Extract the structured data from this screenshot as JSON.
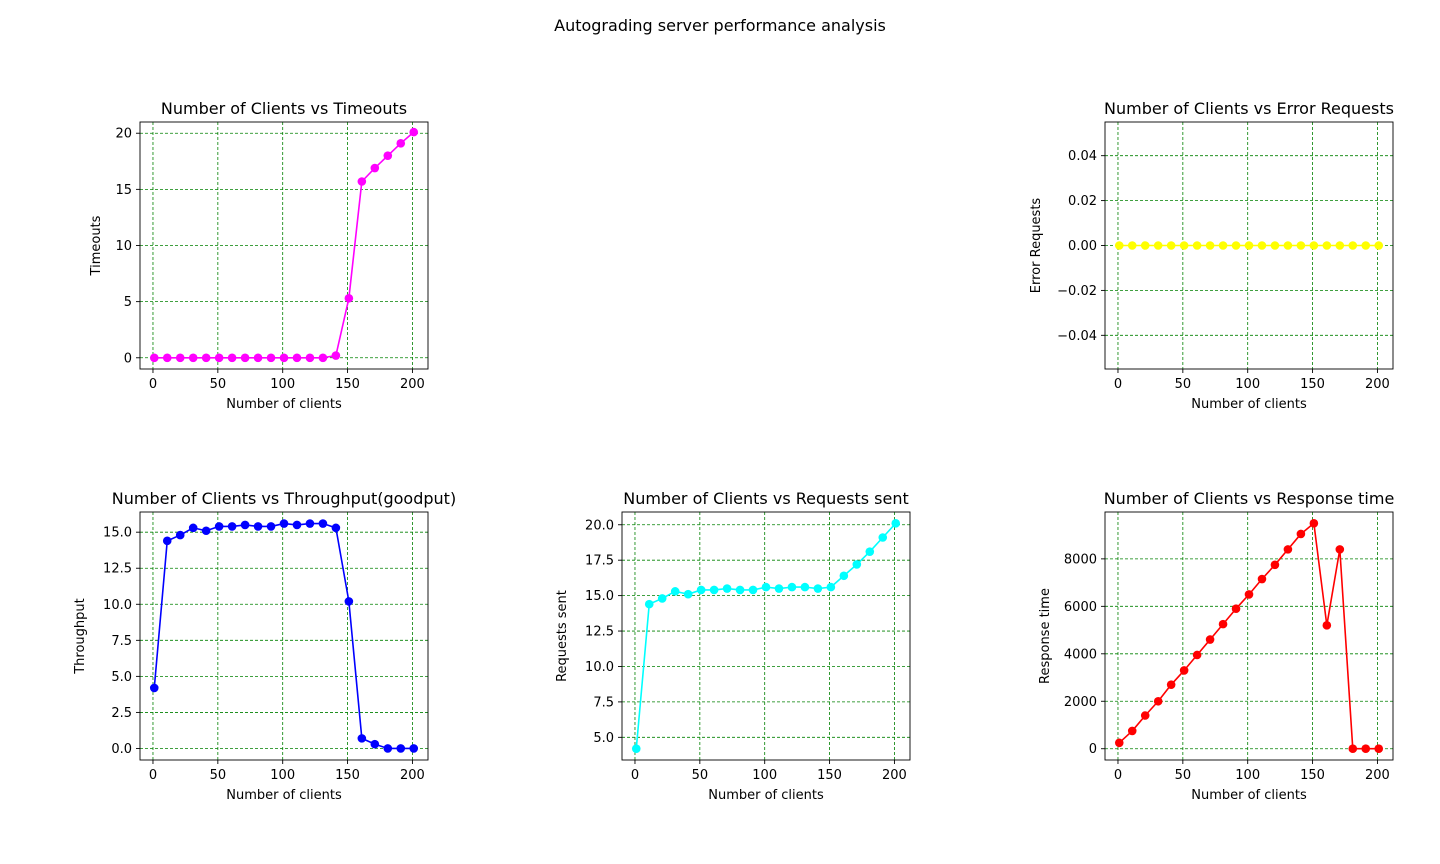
{
  "suptitle": "Autograding server performance analysis",
  "chart_data": [
    {
      "type": "line",
      "title": "Number of Clients vs Timeouts",
      "xlabel": "Number of clients",
      "ylabel": "Timeouts",
      "color": "#ff00ff",
      "x": [
        1,
        11,
        21,
        31,
        41,
        51,
        61,
        71,
        81,
        91,
        101,
        111,
        121,
        131,
        141,
        151,
        161,
        171,
        181,
        191,
        201
      ],
      "values": [
        0,
        0,
        0,
        0,
        0,
        0,
        0,
        0,
        0,
        0,
        0,
        0,
        0,
        0,
        0.2,
        5.3,
        15.7,
        16.9,
        18.0,
        19.1,
        20.1
      ],
      "xlim": [
        -10,
        212
      ],
      "ylim": [
        -1,
        21
      ],
      "xticks": [
        0,
        50,
        100,
        150,
        200
      ],
      "xtick_labels": [
        "0",
        "50",
        "100",
        "150",
        "200"
      ],
      "yticks": [
        0,
        5,
        10,
        15,
        20
      ],
      "ytick_labels": [
        "0",
        "5",
        "10",
        "15",
        "20"
      ],
      "grid": true
    },
    {
      "type": "line",
      "title": "Number of Clients vs Error Requests",
      "xlabel": "Number of clients",
      "ylabel": "Error Requests",
      "color": "#ffff00",
      "x": [
        1,
        11,
        21,
        31,
        41,
        51,
        61,
        71,
        81,
        91,
        101,
        111,
        121,
        131,
        141,
        151,
        161,
        171,
        181,
        191,
        201
      ],
      "values": [
        0,
        0,
        0,
        0,
        0,
        0,
        0,
        0,
        0,
        0,
        0,
        0,
        0,
        0,
        0,
        0,
        0,
        0,
        0,
        0,
        0
      ],
      "xlim": [
        -10,
        212
      ],
      "ylim": [
        -0.055,
        0.055
      ],
      "xticks": [
        0,
        50,
        100,
        150,
        200
      ],
      "xtick_labels": [
        "0",
        "50",
        "100",
        "150",
        "200"
      ],
      "yticks": [
        -0.04,
        -0.02,
        0,
        0.02,
        0.04
      ],
      "ytick_labels": [
        "−0.04",
        "−0.02",
        "0.00",
        "0.02",
        "0.04"
      ],
      "grid": true
    },
    {
      "type": "line",
      "title": "Number of Clients vs Throughput(goodput)",
      "xlabel": "Number of clients",
      "ylabel": "Throughput",
      "color": "#0000ff",
      "x": [
        1,
        11,
        21,
        31,
        41,
        51,
        61,
        71,
        81,
        91,
        101,
        111,
        121,
        131,
        141,
        151,
        161,
        171,
        181,
        191,
        201
      ],
      "values": [
        4.2,
        14.4,
        14.8,
        15.3,
        15.1,
        15.4,
        15.4,
        15.5,
        15.4,
        15.4,
        15.6,
        15.5,
        15.6,
        15.6,
        15.3,
        10.2,
        0.7,
        0.3,
        0.0,
        0.0,
        0.0
      ],
      "xlim": [
        -10,
        212
      ],
      "ylim": [
        -0.8,
        16.4
      ],
      "xticks": [
        0,
        50,
        100,
        150,
        200
      ],
      "xtick_labels": [
        "0",
        "50",
        "100",
        "150",
        "200"
      ],
      "yticks": [
        0,
        2.5,
        5,
        7.5,
        10,
        12.5,
        15
      ],
      "ytick_labels": [
        "0.0",
        "2.5",
        "5.0",
        "7.5",
        "10.0",
        "12.5",
        "15.0"
      ],
      "grid": true
    },
    {
      "type": "line",
      "title": "Number of Clients vs Requests sent",
      "xlabel": "Number of clients",
      "ylabel": "Requests sent",
      "color": "#00ffff",
      "x": [
        1,
        11,
        21,
        31,
        41,
        51,
        61,
        71,
        81,
        91,
        101,
        111,
        121,
        131,
        141,
        151,
        161,
        171,
        181,
        191,
        201
      ],
      "values": [
        4.2,
        14.4,
        14.8,
        15.3,
        15.1,
        15.4,
        15.4,
        15.5,
        15.4,
        15.4,
        15.6,
        15.5,
        15.6,
        15.6,
        15.5,
        15.6,
        16.4,
        17.2,
        18.1,
        19.1,
        20.1
      ],
      "xlim": [
        -10,
        212
      ],
      "ylim": [
        3.4,
        20.9
      ],
      "xticks": [
        0,
        50,
        100,
        150,
        200
      ],
      "xtick_labels": [
        "0",
        "50",
        "100",
        "150",
        "200"
      ],
      "yticks": [
        5,
        7.5,
        10,
        12.5,
        15,
        17.5,
        20
      ],
      "ytick_labels": [
        "5.0",
        "7.5",
        "10.0",
        "12.5",
        "15.0",
        "17.5",
        "20.0"
      ],
      "grid": true
    },
    {
      "type": "line",
      "title": "Number of Clients vs Response time",
      "xlabel": "Number of clients",
      "ylabel": "Response time",
      "color": "#ff0000",
      "x": [
        1,
        11,
        21,
        31,
        41,
        51,
        61,
        71,
        81,
        91,
        101,
        111,
        121,
        131,
        141,
        151,
        161,
        171,
        181,
        191,
        201
      ],
      "values": [
        250,
        750,
        1400,
        2000,
        2700,
        3300,
        3950,
        4600,
        5250,
        5900,
        6500,
        7150,
        7750,
        8400,
        9050,
        9500,
        5200,
        8400,
        0,
        0,
        0
      ],
      "xlim": [
        -10,
        212
      ],
      "ylim": [
        -475,
        9975
      ],
      "xticks": [
        0,
        50,
        100,
        150,
        200
      ],
      "xtick_labels": [
        "0",
        "50",
        "100",
        "150",
        "200"
      ],
      "yticks": [
        0,
        2000,
        4000,
        6000,
        8000
      ],
      "ytick_labels": [
        "0",
        "2000",
        "4000",
        "6000",
        "8000"
      ],
      "grid": true
    }
  ]
}
